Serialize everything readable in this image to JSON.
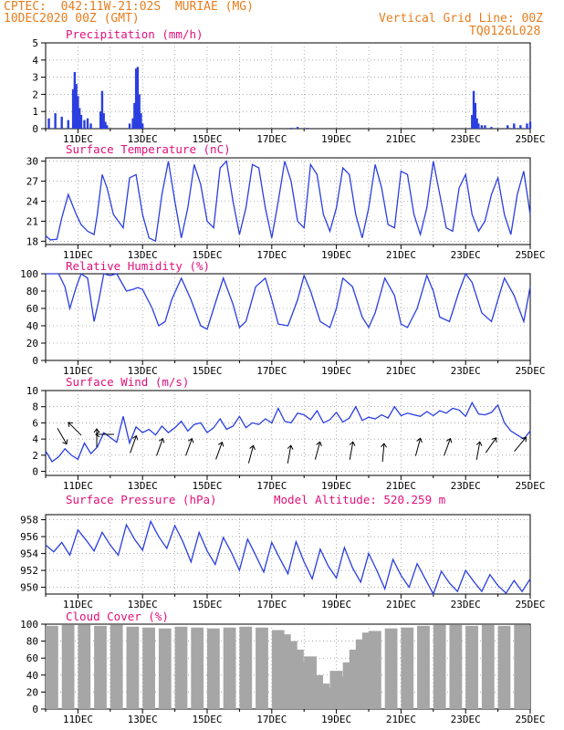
{
  "header": {
    "line1_left": "CPTEC:  042:11W-21:02S  MURIAE (MG)",
    "line2_left": "10DEC2020 00Z (GMT)",
    "line1_right": "Vertical Grid Line: 00Z",
    "line2_right": "TQ0126L028"
  },
  "colors": {
    "header": "#e87d1e",
    "title": "#e0107a",
    "series": "#2a3ee0",
    "cloud": "#a6a6a6"
  },
  "chart_data": [
    {
      "type": "bar",
      "title": "Precipitation (mm/h)",
      "ylim": [
        0,
        5
      ],
      "yticks": [
        0,
        1,
        2,
        3,
        4,
        5
      ],
      "xlabels": [
        "11DEC",
        "13DEC",
        "15DEC",
        "17DEC",
        "19DEC",
        "21DEC",
        "23DEC",
        "25DEC"
      ],
      "x_range_days": [
        0,
        15
      ],
      "x": [
        0.1,
        0.3,
        0.5,
        0.7,
        0.85,
        0.9,
        0.95,
        1.0,
        1.05,
        1.1,
        1.2,
        1.3,
        1.4,
        1.7,
        1.75,
        1.8,
        1.85,
        1.9,
        2.6,
        2.7,
        2.75,
        2.8,
        2.85,
        2.9,
        2.95,
        3.0,
        7.6,
        7.8,
        8.1,
        13.2,
        13.25,
        13.3,
        13.35,
        13.4,
        13.5,
        13.6,
        13.8,
        14.3,
        14.5,
        14.7,
        14.9,
        15.0
      ],
      "values": [
        0.6,
        0.9,
        0.7,
        0.5,
        2.3,
        3.3,
        2.6,
        1.9,
        1.2,
        0.8,
        0.5,
        0.6,
        0.3,
        1.0,
        2.2,
        0.9,
        0.4,
        0.2,
        0.3,
        0.6,
        1.5,
        3.5,
        3.6,
        2.0,
        0.9,
        0.3,
        0.05,
        0.1,
        0.05,
        0.8,
        2.2,
        1.5,
        0.6,
        0.3,
        0.2,
        0.2,
        0.1,
        0.2,
        0.3,
        0.2,
        0.3,
        0.4
      ]
    },
    {
      "type": "line",
      "title": "Surface Temperature (nC)",
      "ylim": [
        17.5,
        30.5
      ],
      "yticks": [
        18,
        21,
        24,
        27,
        30
      ],
      "xlabels": [
        "11DEC",
        "13DEC",
        "15DEC",
        "17DEC",
        "19DEC",
        "21DEC",
        "23DEC",
        "25DEC"
      ],
      "x": [
        0,
        0.15,
        0.35,
        0.5,
        0.7,
        0.95,
        1.1,
        1.3,
        1.5,
        1.6,
        1.75,
        1.9,
        2.1,
        2.4,
        2.6,
        2.8,
        3.0,
        3.2,
        3.4,
        3.6,
        3.8,
        4.0,
        4.2,
        4.4,
        4.6,
        4.8,
        5.0,
        5.2,
        5.4,
        5.6,
        5.8,
        6.0,
        6.2,
        6.4,
        6.6,
        6.8,
        7.0,
        7.2,
        7.4,
        7.6,
        7.8,
        8.0,
        8.2,
        8.4,
        8.6,
        8.8,
        9.0,
        9.2,
        9.4,
        9.6,
        9.8,
        10.0,
        10.2,
        10.4,
        10.6,
        10.8,
        11.0,
        11.2,
        11.4,
        11.6,
        11.8,
        12.0,
        12.2,
        12.4,
        12.6,
        12.8,
        13.0,
        13.2,
        13.4,
        13.6,
        13.8,
        14.0,
        14.2,
        14.4,
        14.6,
        14.8,
        15.0
      ],
      "values": [
        18.8,
        18.2,
        18.3,
        21.5,
        25.0,
        22.0,
        20.5,
        19.5,
        19.0,
        22.0,
        28.0,
        26.0,
        22.0,
        20.0,
        27.5,
        28.0,
        22.0,
        18.5,
        18.0,
        25.0,
        30.0,
        24.0,
        18.5,
        23.0,
        29.5,
        26.5,
        21.0,
        20.0,
        29.0,
        30.0,
        24.0,
        19.0,
        23.0,
        29.5,
        29.0,
        23.0,
        18.5,
        24.0,
        30.0,
        27.0,
        21.0,
        20.0,
        29.5,
        28.0,
        22.0,
        19.5,
        23.0,
        29.0,
        28.0,
        22.0,
        18.5,
        23.0,
        29.5,
        26.0,
        20.5,
        20.0,
        28.5,
        28.0,
        22.0,
        19.0,
        23.0,
        30.0,
        25.0,
        20.0,
        19.5,
        26.0,
        28.0,
        22.0,
        19.5,
        21.0,
        25.0,
        27.5,
        22.0,
        19.0,
        25.0,
        28.5,
        22.0
      ]
    },
    {
      "type": "line",
      "title": "Relative Humidity (%)",
      "ylim": [
        0,
        100
      ],
      "yticks": [
        0,
        20,
        40,
        60,
        80,
        100
      ],
      "xlabels": [
        "11DEC",
        "13DEC",
        "15DEC",
        "17DEC",
        "19DEC",
        "21DEC",
        "23DEC",
        "25DEC"
      ],
      "x": [
        0,
        0.4,
        0.6,
        0.75,
        0.95,
        1.1,
        1.3,
        1.5,
        1.65,
        1.8,
        2.0,
        2.2,
        2.5,
        2.7,
        2.85,
        3.0,
        3.3,
        3.5,
        3.7,
        3.9,
        4.2,
        4.5,
        4.8,
        5.0,
        5.2,
        5.5,
        5.8,
        6.0,
        6.2,
        6.5,
        6.8,
        7.0,
        7.2,
        7.5,
        7.8,
        8.0,
        8.2,
        8.5,
        8.8,
        9.0,
        9.2,
        9.5,
        9.8,
        10.0,
        10.2,
        10.5,
        10.8,
        11.0,
        11.2,
        11.5,
        11.8,
        12.0,
        12.2,
        12.5,
        12.8,
        13.0,
        13.2,
        13.5,
        13.8,
        14.0,
        14.2,
        14.5,
        14.8,
        15.0
      ],
      "values": [
        100,
        100,
        85,
        60,
        85,
        100,
        95,
        45,
        70,
        100,
        98,
        100,
        80,
        82,
        84,
        82,
        60,
        40,
        45,
        70,
        95,
        70,
        40,
        36,
        60,
        95,
        65,
        38,
        45,
        85,
        95,
        70,
        42,
        40,
        70,
        98,
        80,
        45,
        38,
        60,
        95,
        85,
        50,
        38,
        55,
        95,
        75,
        42,
        38,
        60,
        98,
        80,
        50,
        45,
        80,
        100,
        90,
        55,
        45,
        70,
        95,
        75,
        45,
        85
      ]
    },
    {
      "type": "line",
      "title": "Surface Wind (m/s)",
      "ylim": [
        -0.5,
        10
      ],
      "yticks": [
        0,
        2,
        4,
        6,
        8,
        10
      ],
      "xlabels": [
        "11DEC",
        "13DEC",
        "15DEC",
        "17DEC",
        "19DEC",
        "21DEC",
        "23DEC",
        "25DEC"
      ],
      "x": [
        0,
        0.2,
        0.4,
        0.6,
        0.8,
        1.0,
        1.2,
        1.4,
        1.6,
        1.8,
        2.0,
        2.2,
        2.4,
        2.6,
        2.8,
        3.0,
        3.2,
        3.4,
        3.6,
        3.8,
        4.0,
        4.2,
        4.4,
        4.6,
        4.8,
        5.0,
        5.2,
        5.4,
        5.6,
        5.8,
        6.0,
        6.2,
        6.4,
        6.6,
        6.8,
        7.0,
        7.2,
        7.4,
        7.6,
        7.8,
        8.0,
        8.2,
        8.4,
        8.6,
        8.8,
        9.0,
        9.2,
        9.4,
        9.6,
        9.8,
        10.0,
        10.2,
        10.4,
        10.6,
        10.8,
        11.0,
        11.2,
        11.4,
        11.6,
        11.8,
        12.0,
        12.2,
        12.4,
        12.6,
        12.8,
        13.0,
        13.2,
        13.4,
        13.6,
        13.8,
        14.0,
        14.2,
        14.4,
        14.6,
        14.8,
        15.0
      ],
      "values": [
        2.5,
        1.2,
        1.8,
        2.8,
        2.0,
        1.5,
        3.5,
        2.2,
        3.0,
        4.8,
        4.2,
        3.6,
        6.8,
        3.5,
        5.5,
        4.8,
        5.2,
        4.5,
        5.6,
        4.8,
        5.4,
        6.2,
        5.0,
        5.8,
        6.0,
        4.8,
        5.4,
        6.5,
        5.2,
        5.6,
        6.8,
        5.4,
        6.0,
        5.8,
        6.5,
        6.0,
        7.8,
        6.2,
        6.0,
        7.2,
        7.0,
        6.4,
        7.5,
        6.0,
        6.4,
        7.3,
        6.1,
        6.6,
        8.0,
        6.3,
        6.7,
        6.5,
        7.0,
        6.6,
        8.0,
        6.9,
        7.2,
        7.0,
        6.8,
        7.4,
        6.9,
        7.5,
        7.2,
        7.8,
        7.6,
        6.8,
        8.5,
        7.1,
        7.0,
        7.3,
        8.2,
        6.0,
        5.0,
        4.5,
        4.0,
        5.0
      ]
    },
    {
      "type": "line",
      "title": "Surface Pressure (hPa)",
      "model_altitude": "Model Altitude: 520.259 m",
      "ylim": [
        949.2,
        958.6
      ],
      "yticks": [
        950,
        952,
        954,
        956,
        958
      ],
      "xlabels": [
        "11DEC",
        "13DEC",
        "15DEC",
        "17DEC",
        "19DEC",
        "21DEC",
        "23DEC",
        "25DEC"
      ],
      "x": [
        0,
        0.25,
        0.5,
        0.75,
        1.0,
        1.25,
        1.5,
        1.75,
        2.0,
        2.25,
        2.5,
        2.75,
        3.0,
        3.25,
        3.5,
        3.75,
        4.0,
        4.25,
        4.5,
        4.75,
        5.0,
        5.25,
        5.5,
        5.75,
        6.0,
        6.25,
        6.5,
        6.75,
        7.0,
        7.25,
        7.5,
        7.75,
        8.0,
        8.25,
        8.5,
        8.75,
        9.0,
        9.25,
        9.5,
        9.75,
        10.0,
        10.25,
        10.5,
        10.75,
        11.0,
        11.25,
        11.5,
        11.75,
        12.0,
        12.25,
        12.5,
        12.75,
        13.0,
        13.25,
        13.5,
        13.75,
        14.0,
        14.25,
        14.5,
        14.75,
        15.0
      ],
      "values": [
        955.0,
        954.2,
        955.3,
        953.8,
        956.8,
        955.6,
        954.3,
        956.5,
        955.0,
        953.8,
        957.4,
        955.7,
        954.4,
        957.8,
        956.0,
        954.6,
        957.3,
        955.4,
        953.0,
        956.5,
        954.3,
        952.7,
        955.9,
        954.1,
        952.0,
        955.7,
        953.8,
        951.8,
        955.3,
        953.4,
        951.6,
        955.4,
        953.0,
        951.0,
        954.5,
        952.5,
        951.1,
        954.7,
        952.3,
        950.6,
        954.0,
        952.0,
        949.8,
        953.3,
        951.4,
        950.0,
        952.8,
        951.0,
        949.2,
        951.9,
        950.5,
        949.5,
        952.0,
        950.7,
        949.5,
        951.5,
        950.2,
        949.3,
        950.8,
        949.5,
        951.0
      ]
    },
    {
      "type": "bar",
      "title": "Cloud Cover (%)",
      "ylim": [
        0,
        100
      ],
      "yticks": [
        0,
        20,
        40,
        60,
        80,
        100
      ],
      "xlabels": [
        "11DEC",
        "13DEC",
        "15DEC",
        "17DEC",
        "19DEC",
        "21DEC",
        "23DEC",
        "25DEC"
      ],
      "x": [
        0,
        0.5,
        1.0,
        1.5,
        2.0,
        2.5,
        3.0,
        3.5,
        4.0,
        4.5,
        5.0,
        5.5,
        6.0,
        6.5,
        7.0,
        7.2,
        7.4,
        7.6,
        7.8,
        8.0,
        8.2,
        8.4,
        8.6,
        8.8,
        9.0,
        9.2,
        9.4,
        9.6,
        9.8,
        10.0,
        10.5,
        11.0,
        11.5,
        12.0,
        12.5,
        13.0,
        13.5,
        14.0,
        14.5,
        15.0
      ],
      "values": [
        98,
        99,
        99,
        98,
        99,
        97,
        96,
        95,
        97,
        96,
        95,
        96,
        97,
        96,
        93,
        88,
        80,
        70,
        55,
        62,
        40,
        30,
        25,
        45,
        38,
        55,
        70,
        82,
        90,
        92,
        95,
        96,
        98,
        99,
        99,
        98,
        99,
        98,
        99,
        99
      ]
    }
  ]
}
